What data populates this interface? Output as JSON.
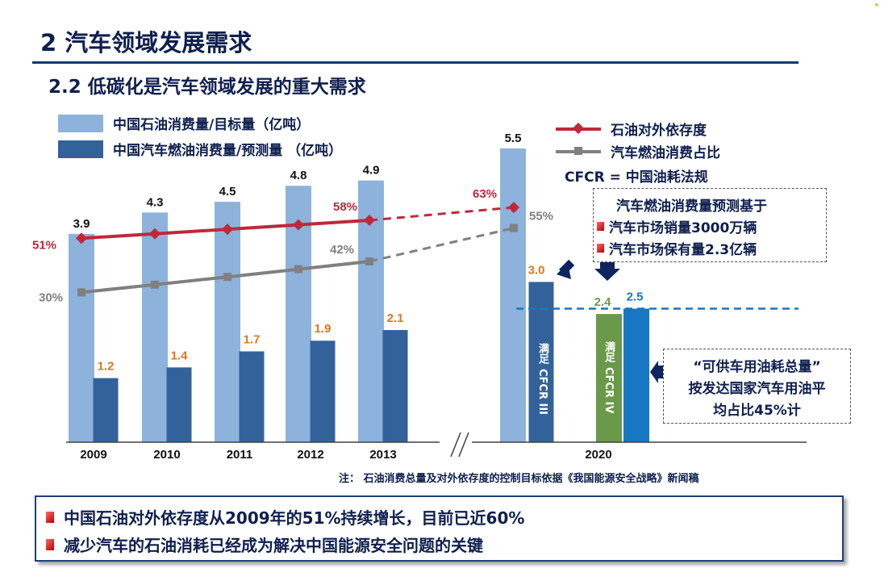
{
  "header": {
    "title": "2  汽车领域发展需求",
    "subtitle": "2.2  低碳化是汽车领域发展的重大需求"
  },
  "legend": {
    "oil_total": "中国石油消费量/目标量（亿吨）",
    "vehicle_fuel": "中国汽车燃油消费量/预测量 （亿吨）",
    "dependence": "石油对外依存度",
    "vehicle_share": "汽车燃油消费占比",
    "cfcr": "CFCR = 中国油耗法规"
  },
  "colors": {
    "light_blue": "#8db3dd",
    "dark_blue": "#33629a",
    "red_line": "#c0283a",
    "gray_line": "#808080",
    "green_bar": "#6a9a49",
    "bright_blue": "#1777c4",
    "orange_label": "#d9781f"
  },
  "forecast_box": {
    "title": "汽车燃油消费量预测基于",
    "line1": "汽车市场销量3000万辆",
    "line2": "汽车市场保有量2.3亿辆"
  },
  "supply_box": {
    "line1": "“可供车用油耗总量”",
    "line2": "按发达国家汽车用油平",
    "line3": "均占比45%计"
  },
  "bar_labels": {
    "cfcr3_top": "满足",
    "cfcr3_bottom": "CFCR III",
    "cfcr4_top": "满足",
    "cfcr4_bottom": "CFCR IV"
  },
  "note": "注：  石油消费总量及对外依存度的控制目标依据《我国能源安全战略》新闻稿",
  "conclusions": [
    "中国石油对外依存度从2009年的51%持续增长，目前已近60%",
    "减少汽车的石油消耗已经成为解决中国能源安全问题的关键"
  ],
  "chart_data": {
    "type": "bar",
    "categories": [
      "2009",
      "2010",
      "2011",
      "2012",
      "2013",
      "2020"
    ],
    "series": [
      {
        "name": "中国石油消费量/目标量（亿吨）",
        "values": [
          3.9,
          4.3,
          4.5,
          4.8,
          4.9,
          5.5
        ]
      },
      {
        "name": "中国汽车燃油消费量/预测量 （亿吨）",
        "values": [
          1.2,
          1.4,
          1.7,
          1.9,
          2.1,
          3.0
        ]
      },
      {
        "name": "满足 CFCR IV",
        "values": [
          null,
          null,
          null,
          null,
          null,
          2.4
        ]
      },
      {
        "name": "“可供车用油耗总量”",
        "values": [
          null,
          null,
          null,
          null,
          null,
          2.5
        ]
      }
    ],
    "lines": [
      {
        "name": "石油对外依存度",
        "values": [
          51,
          null,
          null,
          null,
          58,
          63
        ],
        "labels": [
          "51%",
          "",
          "",
          "",
          "58%",
          "63%"
        ]
      },
      {
        "name": "汽车燃油消费占比",
        "values": [
          30,
          null,
          null,
          null,
          42,
          55
        ],
        "labels": [
          "30%",
          "",
          "",
          "",
          "42%",
          "55%"
        ]
      }
    ],
    "axis_break": "//",
    "reference_line_value": 2.5
  }
}
